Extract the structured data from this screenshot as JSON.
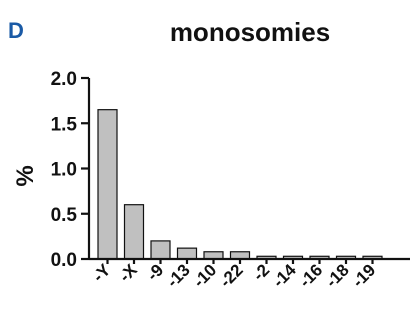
{
  "panel_letter": "D",
  "right_edge_label": "%",
  "chart_data": {
    "type": "bar",
    "title": "monosomies",
    "xlabel": "",
    "ylabel": "%",
    "categories": [
      "-Y",
      "-X",
      "-9",
      "-13",
      "-10",
      "-22",
      "-2",
      "-14",
      "-16",
      "-18",
      "-19"
    ],
    "values": [
      1.65,
      0.6,
      0.2,
      0.12,
      0.08,
      0.08,
      0.03,
      0.03,
      0.03,
      0.03,
      0.03
    ],
    "ylim": [
      0,
      2.0
    ],
    "yticks": [
      "0.0",
      "0.5",
      "1.0",
      "1.5",
      "2.0"
    ],
    "ytick_values": [
      0,
      0.5,
      1.0,
      1.5,
      2.0
    ],
    "grid": false,
    "bar_color": "#c0c0c0",
    "edge_color": "#111111"
  }
}
